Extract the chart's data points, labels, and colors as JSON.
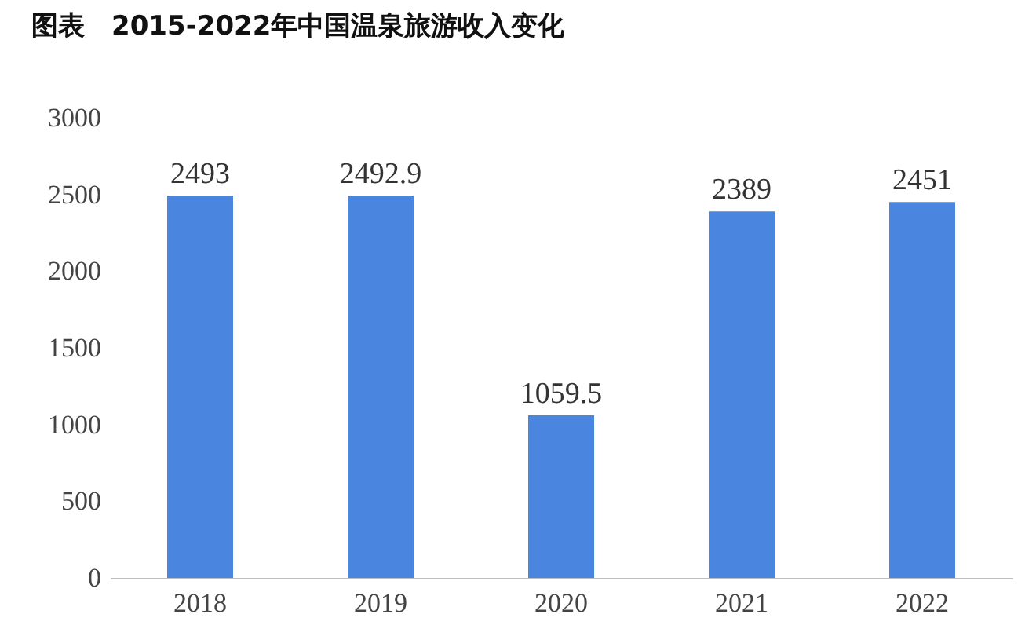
{
  "chart_data": {
    "type": "bar",
    "title": "图表　2015-2022年中国温泉旅游收入变化",
    "categories": [
      "2018",
      "2019",
      "2020",
      "2021",
      "2022"
    ],
    "values": [
      2493,
      2492.9,
      1059.5,
      2389,
      2451
    ],
    "color": "#4a86e0",
    "ylim": [
      0,
      3000
    ],
    "yticks": [
      0,
      500,
      1000,
      1500,
      2000,
      2500,
      3000
    ],
    "grid": false,
    "data_labels": true
  }
}
